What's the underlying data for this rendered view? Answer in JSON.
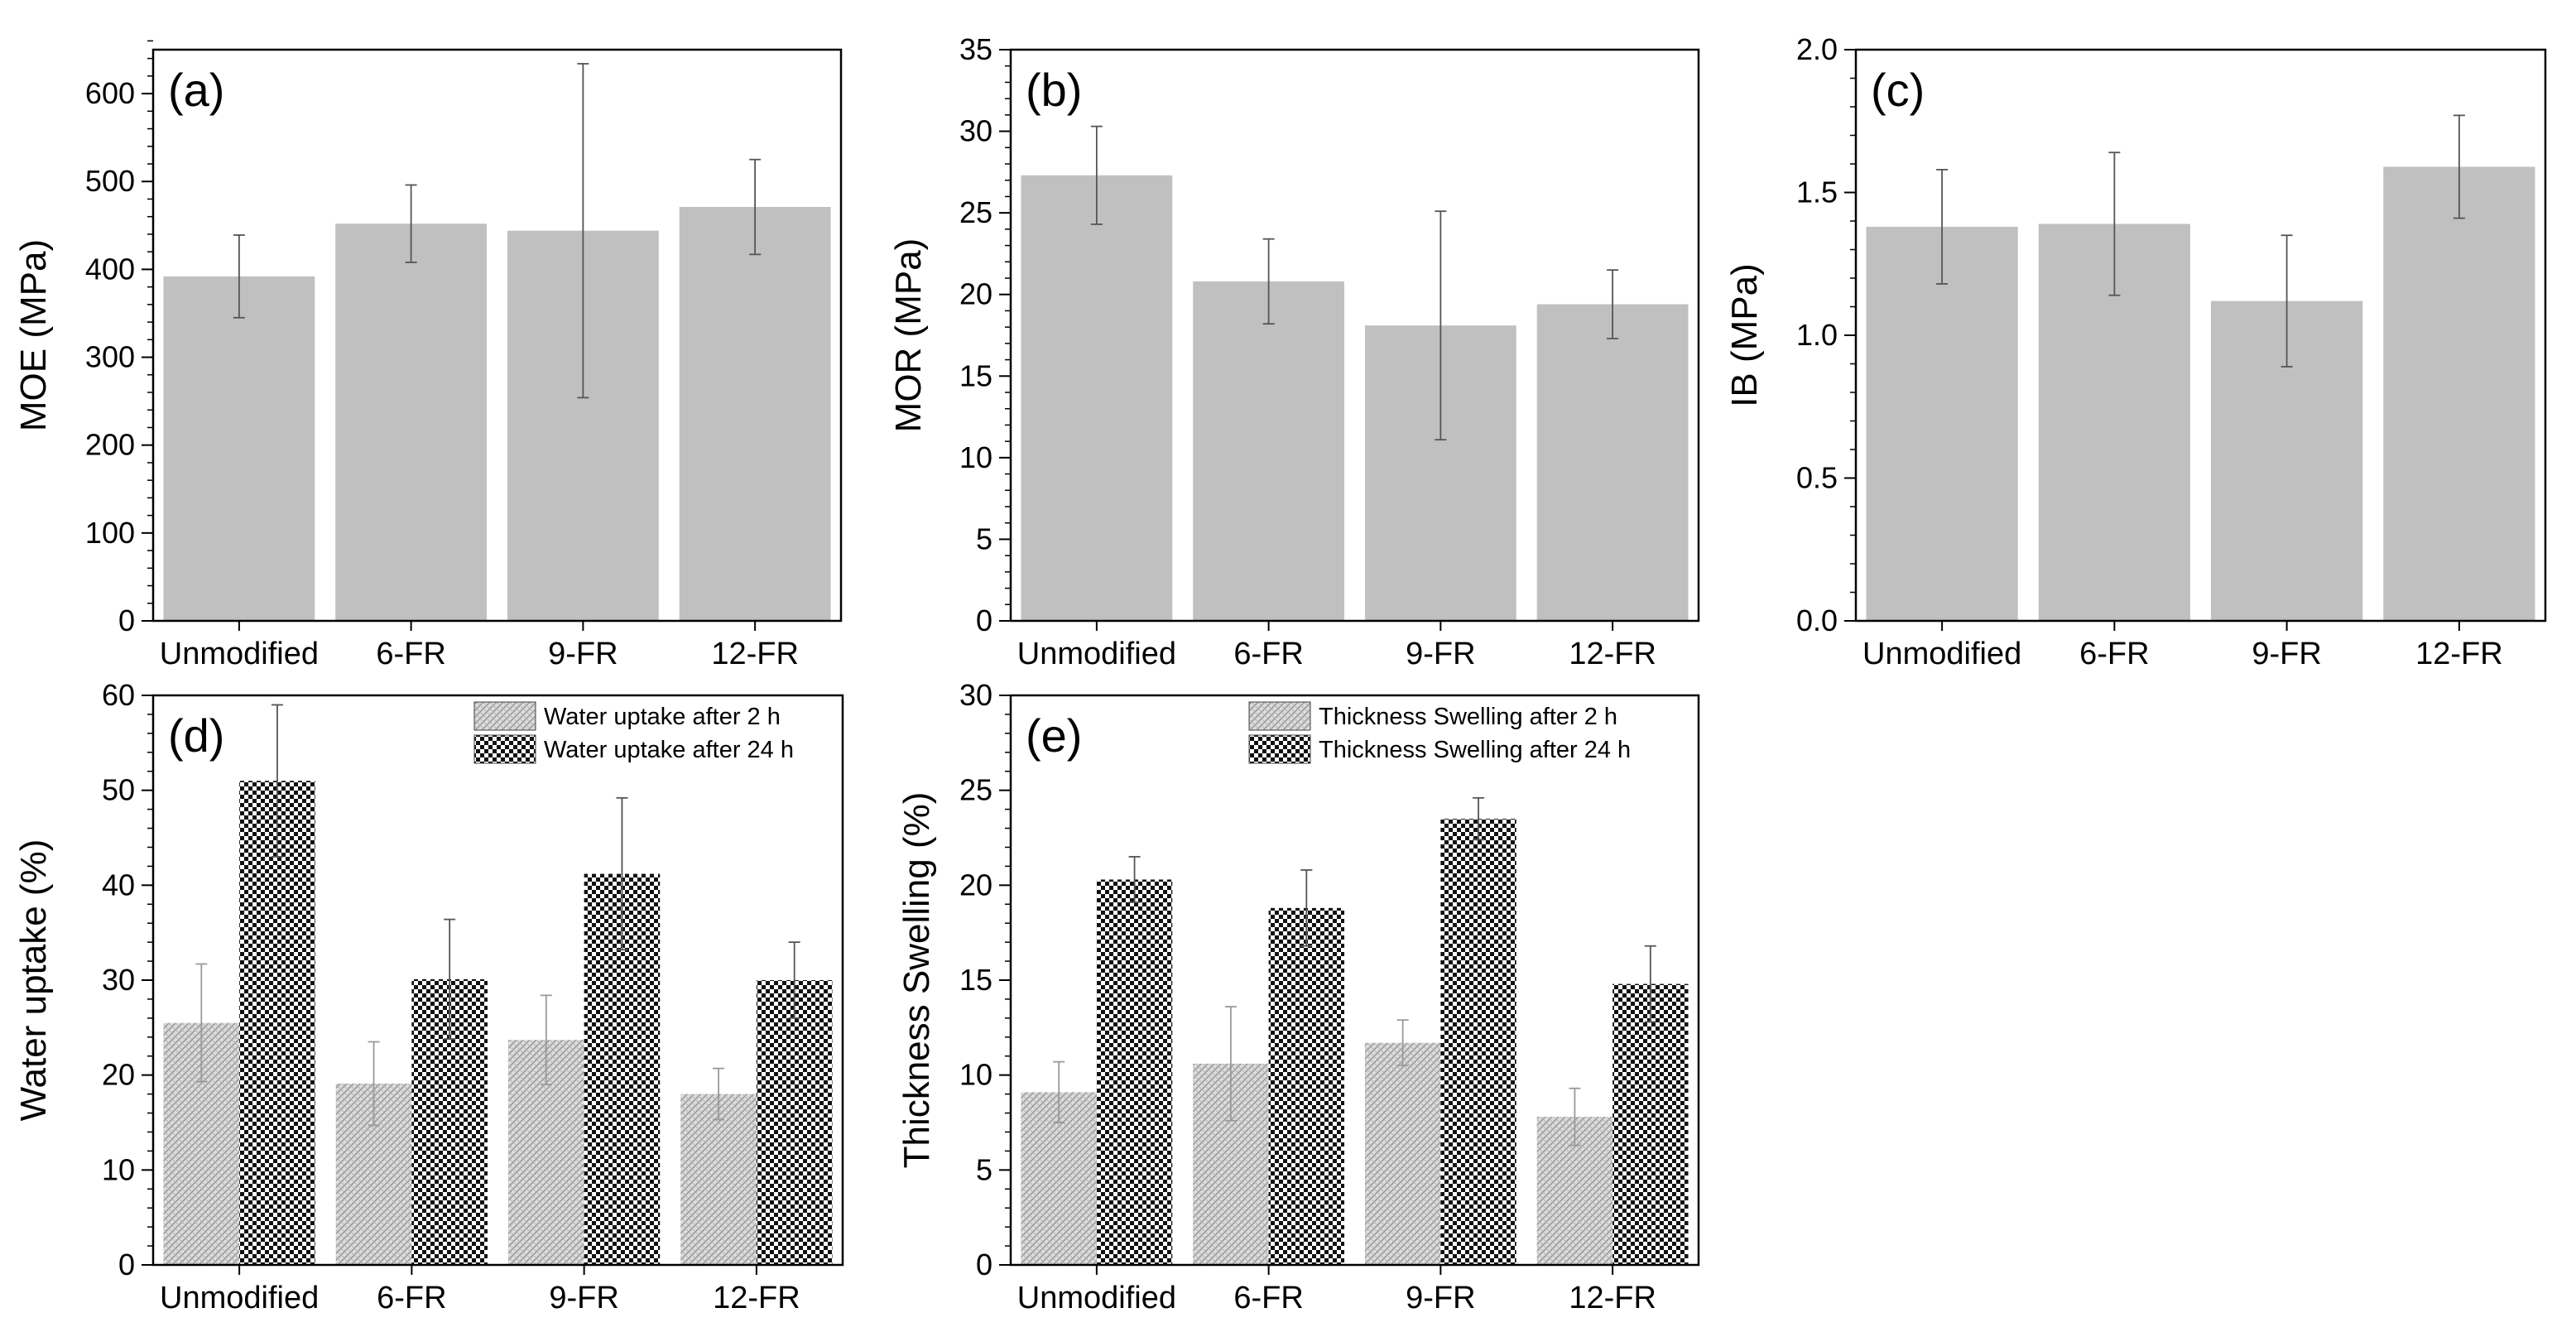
{
  "figure": {
    "description_panels": [
      "a",
      "b",
      "c",
      "d",
      "e"
    ]
  },
  "colors": {
    "bar_gray": "#c0c0c0",
    "axis": "#000000",
    "error_bar": "#555555",
    "hatch_light": "#a8a8a8",
    "checker_dark": "#111111"
  },
  "chart_data": [
    {
      "id": "a",
      "type": "bar",
      "panel_label": "(a)",
      "categories": [
        "Unmodified",
        "6-FR",
        "9-FR",
        "12-FR"
      ],
      "series": [
        {
          "name": "MOE",
          "values": [
            392,
            452,
            444,
            471
          ],
          "errors": [
            47,
            44,
            190,
            54
          ]
        }
      ],
      "ylabel": "MOE (MPa)",
      "ylim": [
        0,
        650
      ],
      "yticks": [
        0,
        100,
        200,
        300,
        400,
        500,
        600
      ],
      "ytick_labels": [
        "0",
        "100",
        "200",
        "300",
        "400",
        "500",
        "600"
      ],
      "minor_step": 20
    },
    {
      "id": "b",
      "type": "bar",
      "panel_label": "(b)",
      "categories": [
        "Unmodified",
        "6-FR",
        "9-FR",
        "12-FR"
      ],
      "series": [
        {
          "name": "MOR",
          "values": [
            27.3,
            20.8,
            18.1,
            19.4
          ],
          "errors": [
            3.0,
            2.6,
            7.0,
            2.1
          ]
        }
      ],
      "ylabel": "MOR (MPa)",
      "ylim": [
        0,
        35
      ],
      "yticks": [
        0,
        5,
        10,
        15,
        20,
        25,
        30,
        35
      ],
      "ytick_labels": [
        "0",
        "5",
        "10",
        "15",
        "20",
        "25",
        "30",
        "35"
      ],
      "minor_step": 1
    },
    {
      "id": "c",
      "type": "bar",
      "panel_label": "(c)",
      "categories": [
        "Unmodified",
        "6-FR",
        "9-FR",
        "12-FR"
      ],
      "series": [
        {
          "name": "IB",
          "values": [
            1.38,
            1.39,
            1.12,
            1.59
          ],
          "errors": [
            0.2,
            0.25,
            0.23,
            0.18
          ]
        }
      ],
      "ylabel": "IB (MPa)",
      "ylim": [
        0,
        2.0
      ],
      "yticks": [
        0,
        0.5,
        1.0,
        1.5,
        2.0
      ],
      "ytick_labels": [
        "0.0",
        "0.5",
        "1.0",
        "1.5",
        "2.0"
      ],
      "minor_step": 0.1
    },
    {
      "id": "d",
      "type": "bar",
      "panel_label": "(d)",
      "categories": [
        "Unmodified",
        "6-FR",
        "9-FR",
        "12-FR"
      ],
      "series": [
        {
          "name": "Water uptake after 2 h",
          "pattern": "hatch",
          "values": [
            25.5,
            19.1,
            23.7,
            18.0
          ],
          "errors": [
            6.2,
            4.4,
            4.7,
            2.7
          ]
        },
        {
          "name": "Water uptake after 24 h",
          "pattern": "checker",
          "values": [
            51.0,
            30.1,
            41.2,
            30.0
          ],
          "errors": [
            8.0,
            6.3,
            8.0,
            4.0
          ]
        }
      ],
      "ylabel": "Water uptake (%)",
      "ylim": [
        0,
        60
      ],
      "yticks": [
        0,
        10,
        20,
        30,
        40,
        50,
        60
      ],
      "ytick_labels": [
        "0",
        "10",
        "20",
        "30",
        "40",
        "50",
        "60"
      ],
      "minor_step": 2,
      "legend_position": "top-right"
    },
    {
      "id": "e",
      "type": "bar",
      "panel_label": "(e)",
      "categories": [
        "Unmodified",
        "6-FR",
        "9-FR",
        "12-FR"
      ],
      "series": [
        {
          "name": "Thickness Swelling after 2 h",
          "pattern": "hatch",
          "values": [
            9.1,
            10.6,
            11.7,
            7.8
          ],
          "errors": [
            1.6,
            3.0,
            1.2,
            1.5
          ]
        },
        {
          "name": "Thickness Swelling after 24 h",
          "pattern": "checker",
          "values": [
            20.3,
            18.8,
            23.5,
            14.8
          ],
          "errors": [
            1.2,
            2.0,
            1.1,
            2.0
          ]
        }
      ],
      "ylabel": "Thickness Swelling (%)",
      "ylim": [
        0,
        30
      ],
      "yticks": [
        0,
        5,
        10,
        15,
        20,
        25,
        30
      ],
      "ytick_labels": [
        "0",
        "5",
        "10",
        "15",
        "20",
        "25",
        "30"
      ],
      "minor_step": 1,
      "legend_position": "top-right"
    }
  ]
}
